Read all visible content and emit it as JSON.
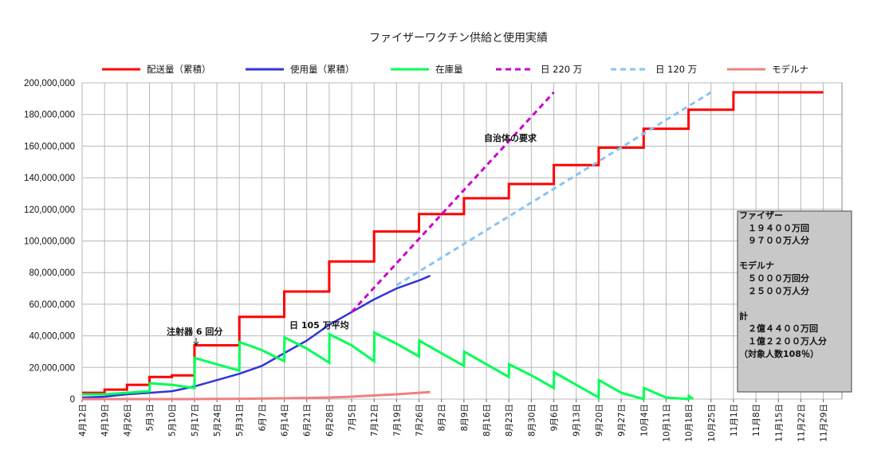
{
  "chart_data": {
    "type": "line",
    "title": "ファイザーワクチン供給と使用実績",
    "xlabel": "",
    "ylabel": "",
    "ylim": [
      0,
      200000000
    ],
    "y_ticks": [
      "0",
      "20,000,000",
      "40,000,000",
      "60,000,000",
      "80,000,000",
      "100,000,000",
      "120,000,000",
      "140,000,000",
      "160,000,000",
      "180,000,000",
      "200,000,000"
    ],
    "x_ticks": [
      "4月12日",
      "4月19日",
      "4月26日",
      "5月3日",
      "5月10日",
      "5月17日",
      "5月24日",
      "5月31日",
      "6月7日",
      "6月14日",
      "6月21日",
      "6月28日",
      "7月5日",
      "7月12日",
      "7月19日",
      "7月26日",
      "8月2日",
      "8月9日",
      "8月16日",
      "8月23日",
      "8月30日",
      "9月6日",
      "9月13日",
      "9月20日",
      "9月27日",
      "10月4日",
      "10月11日",
      "10月18日",
      "10月25日",
      "11月1日",
      "11月8日",
      "11月15日",
      "11月22日",
      "11月29日"
    ],
    "x_unit": "weeks since 4月12日",
    "grid": true,
    "legend_position": "top",
    "series": [
      {
        "name": "配送量（累積）",
        "color": "#ff0000",
        "style": "solid",
        "x": [
          0,
          1,
          1,
          2,
          2,
          3,
          3,
          4,
          4,
          5,
          5,
          6,
          6,
          7,
          7,
          8,
          8,
          9,
          9,
          10,
          10,
          11,
          11,
          12,
          12,
          13,
          13,
          14,
          14,
          15,
          15,
          16,
          16,
          17,
          17,
          18,
          18,
          19,
          19,
          20,
          20,
          21,
          21,
          22,
          22,
          23,
          23,
          24,
          24,
          25,
          25,
          26,
          26,
          27,
          27,
          28,
          28,
          29,
          29,
          30,
          30,
          31,
          31,
          32,
          32,
          33
        ],
        "y": [
          4000000,
          4000000,
          6000000,
          6000000,
          9000000,
          9000000,
          14000000,
          14000000,
          15000000,
          15000000,
          34000000,
          34000000,
          34000000,
          34000000,
          52000000,
          52000000,
          52000000,
          52000000,
          68000000,
          68000000,
          68000000,
          68000000,
          87000000,
          87000000,
          87000000,
          87000000,
          106000000,
          106000000,
          106000000,
          106000000,
          117000000,
          117000000,
          117000000,
          117000000,
          127000000,
          127000000,
          127000000,
          127000000,
          136000000,
          136000000,
          136000000,
          136000000,
          148000000,
          148000000,
          148000000,
          148000000,
          159000000,
          159000000,
          159000000,
          159000000,
          171000000,
          171000000,
          171000000,
          171000000,
          183000000,
          183000000,
          183000000,
          183000000,
          194000000,
          194000000,
          194000000,
          194000000,
          194000000,
          194000000,
          194000000,
          194000000
        ]
      },
      {
        "name": "使用量（累積）",
        "color": "#3333dd",
        "style": "solid",
        "x": [
          0,
          1,
          2,
          3,
          4,
          5,
          6,
          7,
          8,
          9,
          10,
          11,
          12,
          13,
          14,
          15,
          15.5
        ],
        "y": [
          1000000,
          1500000,
          3000000,
          4000000,
          5000000,
          8000000,
          12000000,
          16000000,
          21000000,
          29000000,
          37000000,
          47000000,
          55000000,
          63000000,
          70000000,
          75000000,
          78000000
        ]
      },
      {
        "name": "在庫量",
        "color": "#00ff55",
        "style": "solid",
        "x": [
          0,
          1,
          2,
          3,
          3.01,
          4,
          5,
          5.01,
          6,
          7,
          7.01,
          8,
          9,
          9.01,
          10,
          11,
          11.01,
          12,
          13,
          13.01,
          14,
          15,
          15.01,
          16,
          17,
          17.01,
          18,
          19,
          19.01,
          20,
          21,
          21.01,
          22,
          23,
          23.01,
          24,
          25,
          25.01,
          26,
          27,
          27.01,
          27.2
        ],
        "y": [
          3000000,
          3000000,
          4000000,
          5000000,
          10000000,
          9000000,
          7000000,
          26000000,
          22000000,
          18000000,
          36000000,
          31000000,
          24000000,
          39000000,
          32000000,
          23000000,
          41000000,
          34000000,
          24000000,
          42000000,
          35000000,
          27000000,
          37000000,
          29000000,
          21000000,
          30000000,
          22000000,
          14000000,
          22000000,
          15000000,
          7000000,
          17000000,
          9000000,
          1000000,
          12000000,
          4000000,
          0,
          7000000,
          1000000,
          0,
          2000000,
          0
        ]
      },
      {
        "name": "日 220 万",
        "color": "#cc00cc",
        "style": "dashed",
        "x": [
          12,
          21
        ],
        "y": [
          55000000,
          194000000
        ]
      },
      {
        "name": "日 120 万",
        "color": "#88c4f2",
        "style": "dashed",
        "x": [
          14,
          28
        ],
        "y": [
          72000000,
          194000000
        ]
      },
      {
        "name": "モデルナ",
        "color": "#f08080",
        "style": "solid",
        "x": [
          0,
          5,
          7,
          9,
          11,
          12,
          13,
          14,
          15,
          15.5
        ],
        "y": [
          0,
          0,
          200000,
          500000,
          1000000,
          1500000,
          2300000,
          3000000,
          4000000,
          4500000
        ]
      }
    ],
    "annotations": [
      {
        "text": "注射器 6 回分"
      },
      {
        "text": "日 105 万平均"
      },
      {
        "text": "自治体の要求"
      }
    ],
    "info_box": {
      "lines": [
        "ファイザー",
        "　１９４００万回",
        "　９７００万人分",
        "",
        "モデルナ",
        "　５０００万回分",
        "　２５００万人分",
        "",
        "計",
        "　２億４４００万回",
        "　１億２２００万人分",
        "（対象人数108％）"
      ]
    }
  }
}
